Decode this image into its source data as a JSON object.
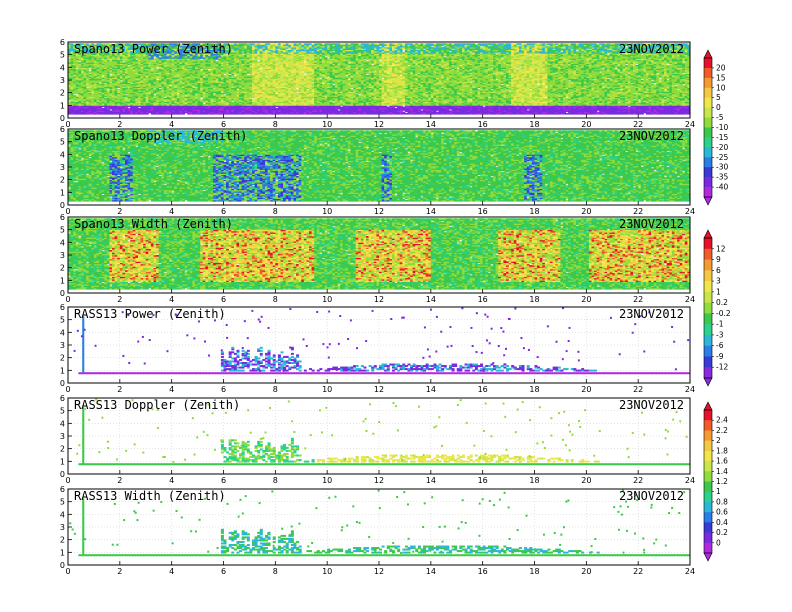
{
  "chart_data": [
    {
      "type": "heatmap",
      "title": "Spano13 Power (Zenith)",
      "date": "23NOV2012",
      "xlim": [
        0,
        24
      ],
      "ylim": [
        0,
        6
      ],
      "xticks": [
        "0",
        "2",
        "4",
        "6",
        "8",
        "10",
        "12",
        "14",
        "16",
        "18",
        "20",
        "22",
        "24"
      ],
      "yticks": [
        "0",
        "1",
        "2",
        "3",
        "4",
        "5",
        "6"
      ],
      "colorbar": "power",
      "profile": "dense-power"
    },
    {
      "type": "heatmap",
      "title": "Spano13 Doppler (Zenith)",
      "date": "23NOV2012",
      "xlim": [
        0,
        24
      ],
      "ylim": [
        0,
        6
      ],
      "xticks": [
        "0",
        "2",
        "4",
        "6",
        "8",
        "10",
        "12",
        "14",
        "16",
        "18",
        "20",
        "22",
        "24"
      ],
      "yticks": [
        "0",
        "1",
        "2",
        "3",
        "4",
        "5",
        "6"
      ],
      "colorbar": "power",
      "profile": "dense-doppler"
    },
    {
      "type": "heatmap",
      "title": "Spano13 Width (Zenith)",
      "date": "23NOV2012",
      "xlim": [
        0,
        24
      ],
      "ylim": [
        0,
        6
      ],
      "xticks": [
        "0",
        "2",
        "4",
        "6",
        "8",
        "10",
        "12",
        "14",
        "16",
        "18",
        "20",
        "22",
        "24"
      ],
      "yticks": [
        "0",
        "1",
        "2",
        "3",
        "4",
        "5",
        "6"
      ],
      "colorbar": "width",
      "profile": "dense-width"
    },
    {
      "type": "heatmap",
      "title": "RASS13 Power (Zenith)",
      "date": "23NOV2012",
      "xlim": [
        0,
        24
      ],
      "ylim": [
        0,
        6
      ],
      "xticks": [
        "0",
        "2",
        "4",
        "6",
        "8",
        "10",
        "12",
        "14",
        "16",
        "18",
        "20",
        "22",
        "24"
      ],
      "yticks": [
        "0",
        "1",
        "2",
        "3",
        "4",
        "5",
        "6"
      ],
      "colorbar": "width",
      "profile": "sparse-power"
    },
    {
      "type": "heatmap",
      "title": "RASS13 Doppler (Zenith)",
      "date": "23NOV2012",
      "xlim": [
        0,
        24
      ],
      "ylim": [
        0,
        6
      ],
      "xticks": [
        "0",
        "2",
        "4",
        "6",
        "8",
        "10",
        "12",
        "14",
        "16",
        "18",
        "20",
        "22",
        "24"
      ],
      "yticks": [
        "0",
        "1",
        "2",
        "3",
        "4",
        "5",
        "6"
      ],
      "colorbar": "rass",
      "profile": "sparse-doppler"
    },
    {
      "type": "heatmap",
      "title": "RASS13 Width (Zenith)",
      "date": "23NOV2012",
      "xlim": [
        0,
        24
      ],
      "ylim": [
        0,
        6
      ],
      "xticks": [
        "0",
        "2",
        "4",
        "6",
        "8",
        "10",
        "12",
        "14",
        "16",
        "18",
        "20",
        "22",
        "24"
      ],
      "yticks": [
        "0",
        "1",
        "2",
        "3",
        "4",
        "5",
        "6"
      ],
      "colorbar": "rass",
      "profile": "sparse-width"
    }
  ],
  "colorbars": {
    "power": {
      "labels": [
        "20",
        "15",
        "10",
        "5",
        "0",
        "-5",
        "-10",
        "-15",
        "-20",
        "-25",
        "-30",
        "-35",
        "-40"
      ],
      "colors": [
        "#e8102a",
        "#f25a2a",
        "#f59a30",
        "#f5c842",
        "#efe64a",
        "#c8e64a",
        "#8fdc3c",
        "#3cc84a",
        "#2ad28c",
        "#2ab8d8",
        "#2a7ee8",
        "#3a3ad8",
        "#7a2ae0",
        "#b02ae0"
      ]
    },
    "width": {
      "labels": [
        "12",
        "9",
        "6",
        "3",
        "1",
        "0.2",
        "-0.2",
        "-1",
        "-3",
        "-6",
        "-9",
        "-12"
      ],
      "colors": [
        "#e8102a",
        "#f25a2a",
        "#f59a30",
        "#f5c842",
        "#efe64a",
        "#c8e64a",
        "#8fdc3c",
        "#3cc84a",
        "#2ad28c",
        "#2ab8d8",
        "#2a7ee8",
        "#3a3ad8",
        "#8a2ae0"
      ]
    },
    "rass": {
      "labels": [
        "2.4",
        "2.2",
        "2",
        "1.8",
        "1.6",
        "1.4",
        "1.2",
        "1",
        "0.8",
        "0.6",
        "0.4",
        "0.2",
        "0"
      ],
      "colors": [
        "#e8102a",
        "#f25a2a",
        "#f59a30",
        "#f5c842",
        "#efe64a",
        "#c8e64a",
        "#8fdc3c",
        "#3cc84a",
        "#2ad28c",
        "#2ab8d8",
        "#2a7ee8",
        "#3a3ad8",
        "#7a2ae0",
        "#b02ae0"
      ]
    }
  }
}
